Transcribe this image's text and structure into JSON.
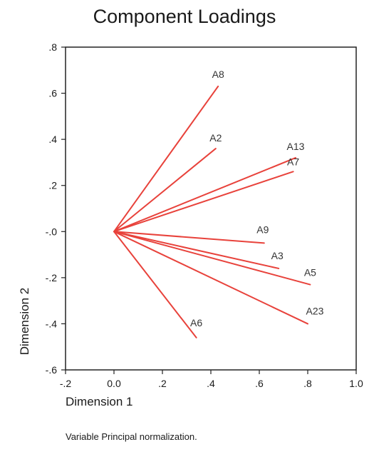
{
  "chart_data": {
    "type": "line",
    "title": "Component Loadings",
    "xlabel": "Dimension 1",
    "ylabel": "Dimension 2",
    "footnote": "Variable Principal normalization.",
    "xlim": [
      -0.2,
      1.0
    ],
    "ylim": [
      -0.6,
      0.8
    ],
    "x_ticks": [
      "-.2",
      "0.0",
      ".2",
      ".4",
      ".6",
      ".8",
      "1.0"
    ],
    "y_ticks": [
      ".8",
      ".6",
      ".4",
      ".2",
      "-.0",
      "-.2",
      "-.4",
      "-.6"
    ],
    "grid": false,
    "line_color": "#e8423b",
    "origin": [
      0.0,
      0.0
    ],
    "vectors": [
      {
        "name": "A8",
        "x": 0.43,
        "y": 0.63
      },
      {
        "name": "A2",
        "x": 0.42,
        "y": 0.36
      },
      {
        "name": "A13",
        "x": 0.75,
        "y": 0.32
      },
      {
        "name": "A7",
        "x": 0.74,
        "y": 0.26
      },
      {
        "name": "A9",
        "x": 0.62,
        "y": -0.05
      },
      {
        "name": "A3",
        "x": 0.68,
        "y": -0.16
      },
      {
        "name": "A5",
        "x": 0.81,
        "y": -0.23
      },
      {
        "name": "A23",
        "x": 0.8,
        "y": -0.4
      },
      {
        "name": "A6",
        "x": 0.34,
        "y": -0.46
      }
    ]
  }
}
